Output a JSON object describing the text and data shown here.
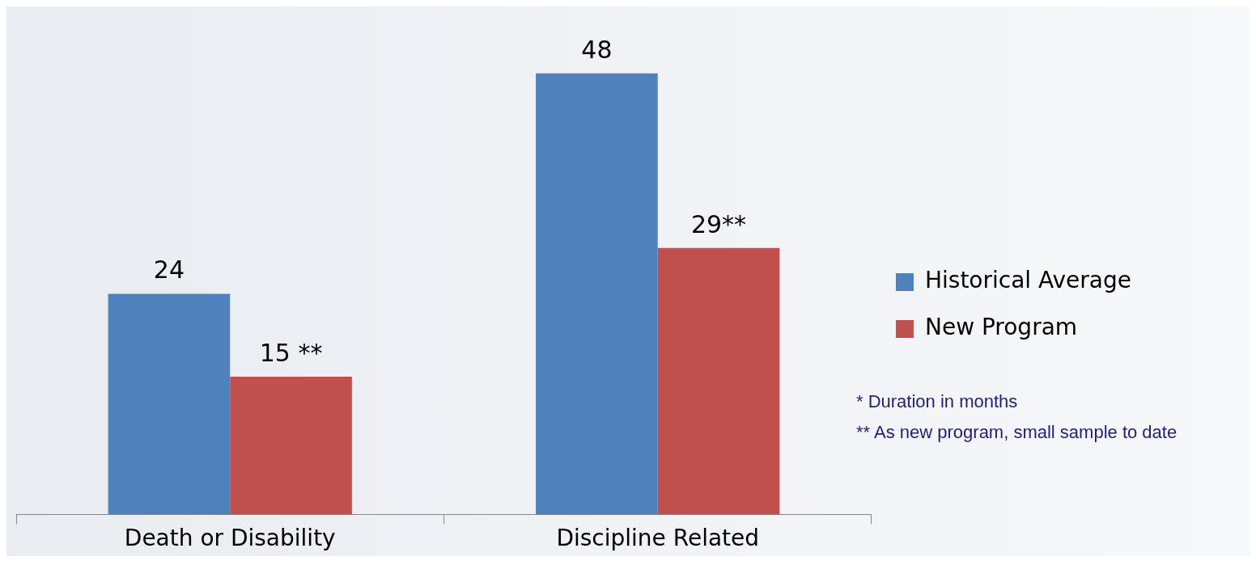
{
  "chart_data": {
    "type": "bar",
    "categories": [
      "Death or Disability",
      "Discipline Related"
    ],
    "series": [
      {
        "name": "Historical Average",
        "color": "#4f81bd",
        "values": [
          24,
          48
        ],
        "value_labels": [
          "24",
          "48"
        ]
      },
      {
        "name": "New Program",
        "color": "#c0504d",
        "values": [
          15,
          29
        ],
        "value_labels": [
          "15 **",
          "29**"
        ]
      }
    ],
    "relative": false,
    "grid": false,
    "legend": "right",
    "annotations": [
      "* Duration in months",
      "** As new program, small sample to date"
    ]
  }
}
